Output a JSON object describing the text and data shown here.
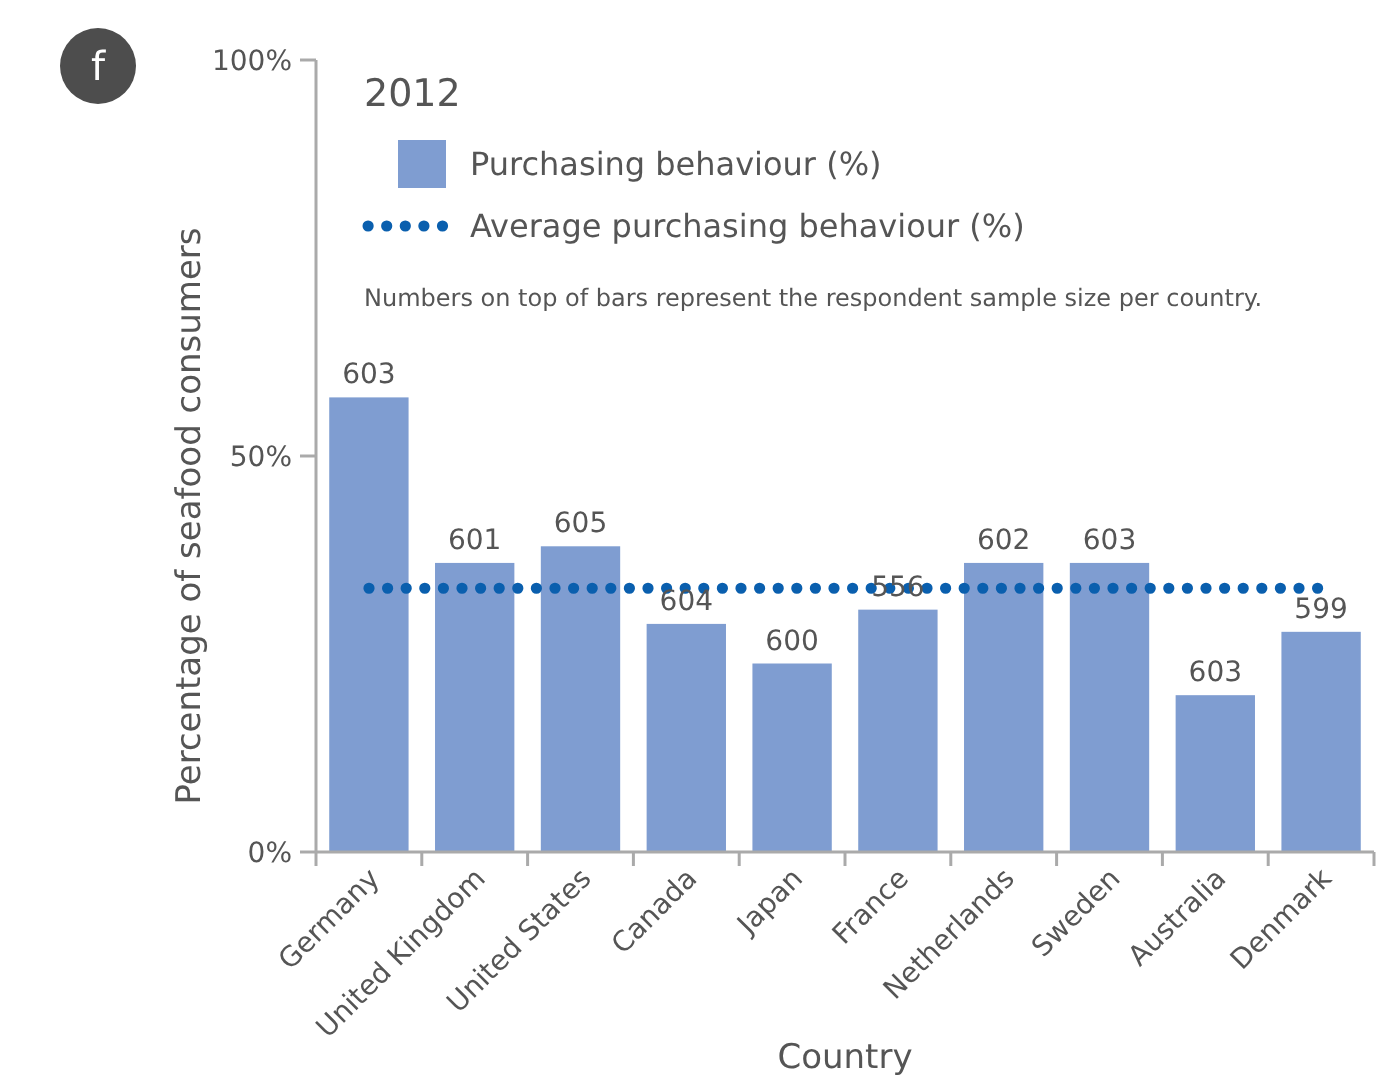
{
  "chart_data": {
    "type": "bar",
    "title": "2012",
    "xlabel": "Country",
    "ylabel": "Percentage of seafood consumers",
    "annotations": [
      "f",
      "Numbers on top of bars represent the respondent sample size per country.",
      {
        "text": "603",
        "x": "Germany",
        "y": 57.4
      },
      {
        "text": "601",
        "x": "United Kingdom",
        "y": 36.5
      },
      {
        "text": "605",
        "x": "United States",
        "y": 38.6
      },
      {
        "text": "604",
        "x": "Canada",
        "y": 28.8
      },
      {
        "text": "600",
        "x": "Japan",
        "y": 23.8
      },
      {
        "text": "556",
        "x": "France",
        "y": 30.6
      },
      {
        "text": "602",
        "x": "Netherlands",
        "y": 36.5
      },
      {
        "text": "603",
        "x": "Sweden",
        "y": 36.5
      },
      {
        "text": "603",
        "x": "Australia",
        "y": 19.8
      },
      {
        "text": "599",
        "x": "Denmark",
        "y": 27.8
      }
    ],
    "categories": [
      "Germany",
      "United Kingdom",
      "United States",
      "Canada",
      "Japan",
      "France",
      "Netherlands",
      "Sweden",
      "Australia",
      "Denmark"
    ],
    "series": [
      {
        "name": "Purchasing behaviour (%)",
        "color": "#7f9dd1",
        "values": [
          57.4,
          36.5,
          38.6,
          28.8,
          23.8,
          30.6,
          36.5,
          36.5,
          19.8,
          27.8
        ]
      }
    ],
    "ref_lines": [
      {
        "axis": "y",
        "value": 33.3,
        "label": "Average purchasing behaviour (%)",
        "color": "#0a5fae",
        "line_style": "dotted"
      }
    ],
    "ylim": [
      0,
      100
    ],
    "yticks": [
      {
        "value": 0,
        "label": "0%"
      },
      {
        "value": 50,
        "label": "50%"
      },
      {
        "value": 100,
        "label": "100%"
      }
    ],
    "grid": false,
    "legend": "top left"
  }
}
